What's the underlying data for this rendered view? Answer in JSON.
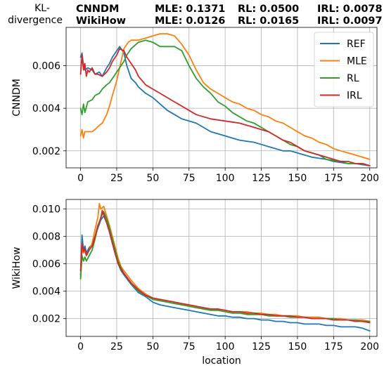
{
  "header": {
    "kl_label_line1": "KL-",
    "kl_label_line2": "divergence",
    "rows": [
      {
        "dataset": "CNNDM",
        "mle": "MLE: 0.1371",
        "rl": "RL: 0.0500",
        "irl": "IRL: 0.0078"
      },
      {
        "dataset": "WikiHow",
        "mle": "MLE: 0.0126",
        "rl": "RL: 0.0165",
        "irl": "IRL: 0.0097"
      }
    ]
  },
  "colors": {
    "REF": "#1f77b4",
    "MLE": "#ff7f0e",
    "RL": "#2ca02c",
    "IRL": "#d62728"
  },
  "chart_data": [
    {
      "type": "line",
      "ylabel": "CNNDM",
      "xlabel": "",
      "xlim": [
        -10,
        205
      ],
      "ylim": [
        0.0012,
        0.0078
      ],
      "xticks": [
        0,
        25,
        50,
        75,
        100,
        125,
        150,
        175,
        200
      ],
      "yticks": [
        0.002,
        0.004,
        0.006
      ],
      "ytick_labels": [
        "0.002",
        "0.004",
        "0.006"
      ],
      "grid": true,
      "legend": "top-right",
      "series": [
        {
          "name": "REF",
          "x": [
            0,
            1,
            2,
            3,
            5,
            8,
            10,
            13,
            15,
            18,
            20,
            22,
            25,
            27,
            28,
            30,
            32,
            35,
            38,
            40,
            45,
            50,
            55,
            60,
            65,
            70,
            75,
            80,
            85,
            90,
            95,
            100,
            105,
            110,
            115,
            120,
            125,
            130,
            135,
            140,
            145,
            150,
            155,
            160,
            165,
            170,
            175,
            180,
            185,
            190,
            195,
            200
          ],
          "y": [
            0.0064,
            0.0066,
            0.006,
            0.0058,
            0.0059,
            0.0058,
            0.0056,
            0.0057,
            0.0055,
            0.0059,
            0.0061,
            0.0064,
            0.0067,
            0.0069,
            0.0068,
            0.0066,
            0.006,
            0.0054,
            0.0052,
            0.005,
            0.0047,
            0.0045,
            0.0042,
            0.0039,
            0.0037,
            0.0035,
            0.0034,
            0.0033,
            0.0031,
            0.0029,
            0.0028,
            0.0027,
            0.0026,
            0.0025,
            0.00245,
            0.0024,
            0.0023,
            0.0022,
            0.0021,
            0.002,
            0.002,
            0.0019,
            0.0018,
            0.0017,
            0.00165,
            0.0016,
            0.0015,
            0.00145,
            0.0014,
            0.0014,
            0.00135,
            0.0013
          ]
        },
        {
          "name": "MLE",
          "x": [
            0,
            1,
            2,
            3,
            5,
            8,
            10,
            13,
            15,
            18,
            20,
            22,
            25,
            28,
            30,
            33,
            35,
            40,
            45,
            50,
            55,
            60,
            65,
            70,
            75,
            80,
            85,
            90,
            95,
            100,
            105,
            110,
            115,
            120,
            125,
            130,
            135,
            140,
            145,
            150,
            155,
            160,
            165,
            170,
            175,
            180,
            185,
            190,
            195,
            200
          ],
          "y": [
            0.0027,
            0.003,
            0.0026,
            0.0029,
            0.0029,
            0.0029,
            0.003,
            0.0032,
            0.0033,
            0.0037,
            0.0041,
            0.0046,
            0.0053,
            0.0062,
            0.0068,
            0.0071,
            0.0072,
            0.0072,
            0.0073,
            0.0074,
            0.0075,
            0.0075,
            0.0074,
            0.007,
            0.0065,
            0.0058,
            0.0052,
            0.0049,
            0.0047,
            0.0045,
            0.0043,
            0.0042,
            0.004,
            0.0039,
            0.0037,
            0.0036,
            0.0034,
            0.0033,
            0.0031,
            0.0029,
            0.0027,
            0.0026,
            0.0024,
            0.0023,
            0.0021,
            0.002,
            0.0019,
            0.0018,
            0.0017,
            0.0016
          ]
        },
        {
          "name": "RL",
          "x": [
            0,
            1,
            2,
            3,
            5,
            8,
            10,
            13,
            15,
            18,
            20,
            22,
            25,
            28,
            30,
            32,
            35,
            40,
            45,
            50,
            55,
            60,
            65,
            70,
            75,
            80,
            85,
            90,
            95,
            100,
            105,
            110,
            115,
            120,
            125,
            130,
            135,
            140,
            145,
            150,
            155,
            160,
            165,
            170,
            175,
            180,
            185,
            190,
            195,
            200
          ],
          "y": [
            0.004,
            0.0037,
            0.0042,
            0.0038,
            0.0043,
            0.0044,
            0.0046,
            0.0047,
            0.0049,
            0.0051,
            0.0052,
            0.0054,
            0.0057,
            0.006,
            0.0062,
            0.0065,
            0.0068,
            0.0071,
            0.0072,
            0.0071,
            0.0069,
            0.0069,
            0.0069,
            0.0067,
            0.006,
            0.0054,
            0.005,
            0.0047,
            0.0043,
            0.0041,
            0.0038,
            0.0036,
            0.0034,
            0.0033,
            0.0031,
            0.0029,
            0.0027,
            0.0025,
            0.0023,
            0.0022,
            0.002,
            0.0019,
            0.0018,
            0.0016,
            0.00155,
            0.0015,
            0.0014,
            0.0014,
            0.0014,
            0.0013
          ]
        },
        {
          "name": "IRL",
          "x": [
            0,
            1,
            2,
            3,
            4,
            5,
            6,
            8,
            10,
            12,
            15,
            18,
            20,
            22,
            25,
            27,
            30,
            32,
            35,
            38,
            40,
            45,
            50,
            55,
            60,
            65,
            70,
            75,
            80,
            85,
            90,
            95,
            100,
            105,
            110,
            115,
            120,
            125,
            130,
            135,
            140,
            145,
            150,
            155,
            160,
            165,
            170,
            175,
            180,
            185,
            190,
            195,
            200
          ],
          "y": [
            0.0056,
            0.0065,
            0.0058,
            0.0061,
            0.0055,
            0.0058,
            0.0057,
            0.0059,
            0.0056,
            0.0056,
            0.0055,
            0.0057,
            0.0059,
            0.0062,
            0.0065,
            0.0068,
            0.0067,
            0.0064,
            0.0061,
            0.0058,
            0.0055,
            0.0051,
            0.0049,
            0.0047,
            0.0045,
            0.0043,
            0.0041,
            0.0039,
            0.0037,
            0.0036,
            0.0035,
            0.00345,
            0.0034,
            0.00335,
            0.0033,
            0.0032,
            0.0031,
            0.003,
            0.0029,
            0.0027,
            0.0025,
            0.0024,
            0.0022,
            0.002,
            0.0019,
            0.0018,
            0.0017,
            0.0016,
            0.0015,
            0.0015,
            0.0014,
            0.0014,
            0.0013
          ]
        }
      ]
    },
    {
      "type": "line",
      "ylabel": "WikiHow",
      "xlabel": "location",
      "xlim": [
        -10,
        205
      ],
      "ylim": [
        0.0007,
        0.0107
      ],
      "xticks": [
        0,
        25,
        50,
        75,
        100,
        125,
        150,
        175,
        200
      ],
      "yticks": [
        0.002,
        0.004,
        0.006,
        0.008,
        0.01
      ],
      "ytick_labels": [
        "0.002",
        "0.004",
        "0.006",
        "0.008",
        "0.010"
      ],
      "grid": true,
      "series": [
        {
          "name": "REF",
          "x": [
            0,
            1,
            2,
            3,
            4,
            6,
            8,
            10,
            12,
            14,
            16,
            18,
            20,
            22,
            24,
            26,
            28,
            30,
            35,
            40,
            45,
            50,
            55,
            60,
            65,
            70,
            75,
            80,
            85,
            90,
            95,
            100,
            105,
            110,
            115,
            120,
            125,
            130,
            135,
            140,
            145,
            150,
            155,
            160,
            165,
            170,
            175,
            180,
            185,
            190,
            195,
            200
          ],
          "y": [
            0.0052,
            0.0081,
            0.007,
            0.0073,
            0.0068,
            0.0072,
            0.0074,
            0.008,
            0.0086,
            0.0092,
            0.0095,
            0.009,
            0.0084,
            0.0075,
            0.0068,
            0.006,
            0.0055,
            0.0052,
            0.0045,
            0.0039,
            0.0036,
            0.0032,
            0.003,
            0.0029,
            0.0028,
            0.0027,
            0.0026,
            0.0025,
            0.0024,
            0.0023,
            0.0022,
            0.0022,
            0.0021,
            0.0021,
            0.002,
            0.002,
            0.0019,
            0.0019,
            0.0018,
            0.0018,
            0.0017,
            0.0017,
            0.0016,
            0.0016,
            0.0016,
            0.0015,
            0.0015,
            0.0014,
            0.0014,
            0.0014,
            0.0013,
            0.0011
          ]
        },
        {
          "name": "MLE",
          "x": [
            0,
            1,
            2,
            3,
            4,
            6,
            8,
            10,
            12,
            13,
            14,
            16,
            18,
            20,
            22,
            24,
            26,
            28,
            30,
            35,
            40,
            45,
            50,
            55,
            60,
            65,
            70,
            75,
            80,
            85,
            90,
            95,
            100,
            105,
            110,
            115,
            120,
            125,
            130,
            135,
            140,
            145,
            150,
            155,
            160,
            165,
            170,
            175,
            180,
            185,
            190,
            195,
            200
          ],
          "y": [
            0.005,
            0.007,
            0.0068,
            0.0069,
            0.0066,
            0.007,
            0.0075,
            0.0085,
            0.0094,
            0.0104,
            0.01,
            0.0102,
            0.0095,
            0.0088,
            0.008,
            0.0072,
            0.0064,
            0.0058,
            0.0055,
            0.0048,
            0.0042,
            0.0038,
            0.0035,
            0.0034,
            0.0033,
            0.0032,
            0.0031,
            0.003,
            0.0029,
            0.0028,
            0.0027,
            0.0027,
            0.0026,
            0.0025,
            0.0025,
            0.0025,
            0.0024,
            0.0024,
            0.0023,
            0.0023,
            0.0022,
            0.0022,
            0.0022,
            0.0021,
            0.0021,
            0.0021,
            0.002,
            0.002,
            0.002,
            0.0019,
            0.0019,
            0.0019,
            0.0018
          ]
        },
        {
          "name": "RL",
          "x": [
            0,
            1,
            2,
            3,
            4,
            6,
            8,
            10,
            12,
            14,
            16,
            18,
            20,
            22,
            24,
            26,
            28,
            30,
            35,
            40,
            45,
            50,
            55,
            60,
            65,
            70,
            75,
            80,
            85,
            90,
            95,
            100,
            105,
            110,
            115,
            120,
            125,
            130,
            135,
            140,
            145,
            150,
            155,
            160,
            165,
            170,
            175,
            180,
            185,
            190,
            195,
            200
          ],
          "y": [
            0.0049,
            0.0066,
            0.0062,
            0.0065,
            0.0062,
            0.0066,
            0.007,
            0.0078,
            0.0087,
            0.0094,
            0.0098,
            0.0093,
            0.0086,
            0.0078,
            0.007,
            0.0062,
            0.0057,
            0.0053,
            0.0046,
            0.004,
            0.0037,
            0.0034,
            0.0033,
            0.0032,
            0.0031,
            0.003,
            0.0029,
            0.0028,
            0.0027,
            0.0026,
            0.0026,
            0.0025,
            0.0024,
            0.0024,
            0.0023,
            0.0023,
            0.0023,
            0.0022,
            0.0022,
            0.0022,
            0.0021,
            0.0021,
            0.0021,
            0.002,
            0.002,
            0.002,
            0.002,
            0.0019,
            0.0019,
            0.0019,
            0.0018,
            0.0018
          ]
        },
        {
          "name": "IRL",
          "x": [
            0,
            1,
            2,
            3,
            4,
            6,
            8,
            10,
            12,
            14,
            15,
            16,
            18,
            20,
            22,
            24,
            26,
            28,
            30,
            35,
            40,
            45,
            50,
            55,
            60,
            65,
            70,
            75,
            80,
            85,
            90,
            95,
            100,
            105,
            110,
            115,
            120,
            125,
            130,
            135,
            140,
            145,
            150,
            155,
            160,
            165,
            170,
            175,
            180,
            185,
            190,
            195,
            200
          ],
          "y": [
            0.0055,
            0.0075,
            0.0069,
            0.0071,
            0.0066,
            0.007,
            0.0073,
            0.008,
            0.0088,
            0.0093,
            0.0099,
            0.0096,
            0.009,
            0.0083,
            0.0075,
            0.0067,
            0.006,
            0.0056,
            0.0053,
            0.0046,
            0.0041,
            0.0037,
            0.0035,
            0.0034,
            0.0033,
            0.0032,
            0.0031,
            0.003,
            0.0029,
            0.0028,
            0.0027,
            0.0027,
            0.0026,
            0.0025,
            0.0025,
            0.0024,
            0.0024,
            0.0023,
            0.0023,
            0.0022,
            0.0022,
            0.0022,
            0.0021,
            0.0021,
            0.002,
            0.002,
            0.002,
            0.0019,
            0.0019,
            0.0019,
            0.0018,
            0.0018,
            0.0017
          ]
        }
      ]
    }
  ]
}
